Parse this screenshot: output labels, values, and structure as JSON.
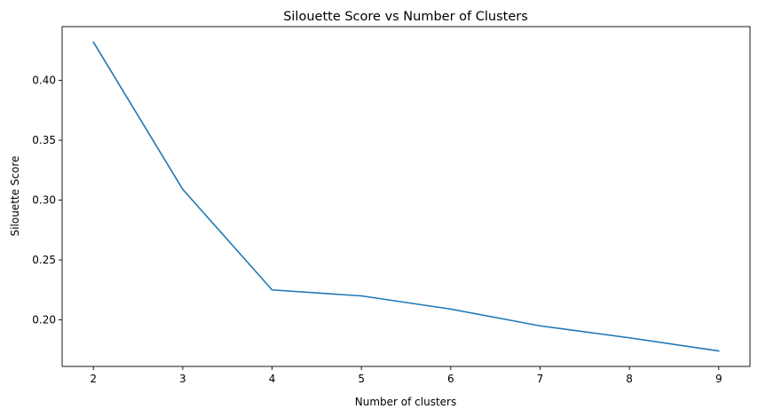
{
  "chart_data": {
    "type": "line",
    "title": "Silouette Score vs Number of Clusters",
    "xlabel": "Number of clusters",
    "ylabel": "Silouette Score",
    "x": [
      2,
      3,
      4,
      5,
      6,
      7,
      8,
      9
    ],
    "series": [
      {
        "values": [
          0.432,
          0.309,
          0.225,
          0.22,
          0.209,
          0.195,
          0.185,
          0.174
        ],
        "color": "#1f77b4"
      }
    ],
    "xlim": [
      1.65,
      9.35
    ],
    "ylim": [
      0.1611,
      0.4449
    ],
    "xticks": [
      "2",
      "3",
      "4",
      "5",
      "6",
      "7",
      "8",
      "9"
    ],
    "yticks": [
      "0.20",
      "0.25",
      "0.30",
      "0.35",
      "0.40"
    ],
    "grid": false,
    "legend": "none"
  }
}
